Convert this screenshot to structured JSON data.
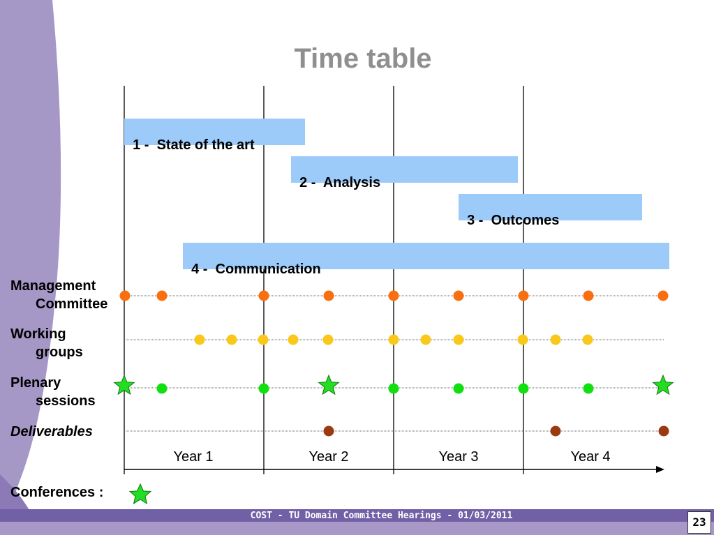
{
  "title": "Time table",
  "phases": [
    {
      "label": "1 -  State of the art"
    },
    {
      "label": "2 -  Analysis"
    },
    {
      "label": "3 -  Outcomes"
    },
    {
      "label": "4 -  Communication"
    }
  ],
  "rows": {
    "management": {
      "line1": "Management",
      "line2": "Committee",
      "color": "#f96e0e"
    },
    "working": {
      "line1": "Working",
      "line2": "groups",
      "color": "#f9c81a"
    },
    "plenary": {
      "line1": "Plenary",
      "line2": "sessions",
      "color": "#10e010"
    },
    "deliverables": {
      "line1": "Deliverables",
      "color": "#9a3a10"
    }
  },
  "years": [
    "Year 1",
    "Year 2",
    "Year 3",
    "Year 4"
  ],
  "conferences_label": "Conferences :",
  "footer": "COST - TU Domain Committee Hearings - 01/03/2011",
  "page_number": "23",
  "colors": {
    "bar": "#9dcbf9",
    "star": "#22dd22",
    "footer": "#7260a6",
    "title": "#8f8f8f"
  },
  "icons": [
    "star-icon"
  ]
}
